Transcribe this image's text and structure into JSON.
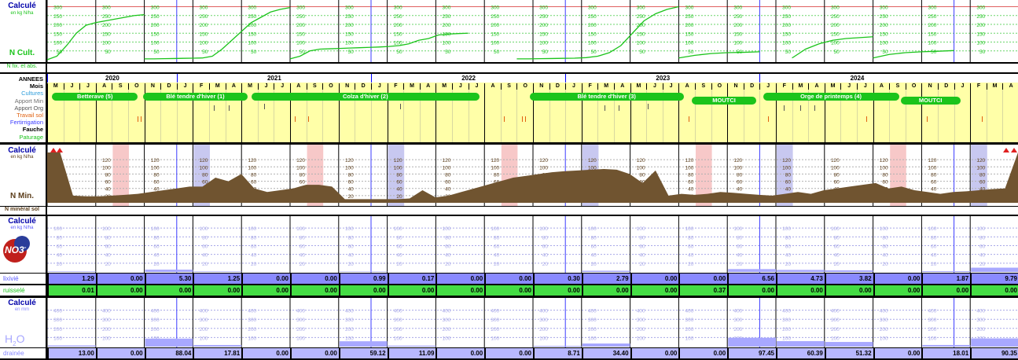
{
  "ncult": {
    "title": "Calculé",
    "unit": "en kg N/ha",
    "name": "N Cult.",
    "sub": "N fix. et abs.",
    "ticks": [
      "50",
      "100",
      "150",
      "200",
      "250",
      "300"
    ]
  },
  "itk": {
    "rows": [
      "ANNEES",
      "Mois",
      "Cultures",
      "Apport Min",
      "Apport Org",
      "Travail sol",
      "Fertirrigation",
      "Fauche",
      "Paturage"
    ],
    "years": [
      "2020",
      "2021",
      "2022",
      "2023",
      "2024"
    ],
    "months": [
      "M",
      "J",
      "J",
      "A",
      "S",
      "O",
      "N",
      "D",
      "J",
      "F",
      "M",
      "A",
      "M",
      "J",
      "J",
      "A",
      "S",
      "O",
      "N",
      "D",
      "J",
      "F",
      "M",
      "A",
      "M",
      "J",
      "J",
      "A",
      "S",
      "O",
      "N",
      "D",
      "J",
      "F",
      "M",
      "A",
      "M",
      "J",
      "J",
      "A",
      "S",
      "O",
      "N",
      "D",
      "J",
      "F",
      "M",
      "A",
      "M",
      "J",
      "J",
      "A",
      "S",
      "O",
      "N",
      "D",
      "J",
      "F",
      "M",
      "A"
    ],
    "crops": [
      "Betterave (5)",
      "Blé tendre d'hiver (1)",
      "Colza d'hiver (2)",
      "Blé tendre d'hiver (3)",
      "MOUTCI",
      "Orge de printemps (4)",
      "MOUTCI"
    ]
  },
  "nmin": {
    "title": "Calculé",
    "unit": "en kg N/ha",
    "name": "N Min.",
    "sub": "N minéral sol",
    "ticks": [
      "20",
      "40",
      "60",
      "80",
      "100",
      "120"
    ]
  },
  "no3": {
    "title": "Calculé",
    "unit": "en kg N/ha",
    "icon": "NO3",
    "sup": "-",
    "row1": "lixivié",
    "row2": "ruisselé",
    "lix": [
      "1.29",
      "0.00",
      "5.30",
      "1.25",
      "0.00",
      "0.00",
      "0.99",
      "0.17",
      "0.00",
      "0.00",
      "0.30",
      "2.79",
      "0.00",
      "0.00",
      "6.56",
      "4.73",
      "3.82",
      "0.00",
      "1.87",
      "9.79"
    ],
    "rui": [
      "0.01",
      "0.00",
      "0.00",
      "0.00",
      "0.00",
      "0.00",
      "0.00",
      "0.00",
      "0.00",
      "0.00",
      "0.00",
      "0.00",
      "0.00",
      "0.37",
      "0.00",
      "0.00",
      "0.00",
      "0.00",
      "0.00",
      "0.00"
    ]
  },
  "h2o": {
    "title": "Calculé",
    "unit": "en mm",
    "name": "H",
    "sub2": "2",
    "name2": "O",
    "ticks": [
      "100",
      "200",
      "300",
      "400"
    ],
    "row": "drainée",
    "vals": [
      "13.00",
      "0.00",
      "88.04",
      "17.81",
      "0.00",
      "0.00",
      "59.12",
      "11.09",
      "0.00",
      "0.00",
      "8.71",
      "34.40",
      "0.00",
      "0.00",
      "97.45",
      "60.39",
      "51.32",
      "0.00",
      "18.01",
      "90.35"
    ]
  },
  "chart_data": [
    {
      "type": "line",
      "title": "Calculé",
      "ylabel": "en kg N/ha",
      "ylim": [
        0,
        320
      ],
      "x": [
        "2020-05",
        "2021-02",
        "2022-02",
        "2023-03",
        "2023-10",
        "2024-03",
        "2024-09"
      ],
      "series": [
        {
          "values": [
            0,
            0,
            0,
            0,
            0,
            0,
            0
          ]
        }
      ],
      "segments": [
        {
          "from": "2020-05",
          "to": "2020-10",
          "points": [
            0,
            20,
            80,
            150,
            195,
            210,
            220,
            230,
            240,
            250,
            255
          ]
        },
        {
          "from": "2020-11",
          "to": "2021-07",
          "points": [
            5,
            5,
            6,
            7,
            8,
            9,
            10,
            20,
            60,
            110,
            160,
            210,
            240,
            270,
            285,
            295
          ]
        },
        {
          "from": "2021-08",
          "to": "2022-06",
          "points": [
            5,
            20,
            50,
            60,
            62,
            64,
            66,
            68,
            70,
            72,
            75,
            80,
            90,
            110,
            120,
            140,
            145,
            148,
            150
          ]
        },
        {
          "from": "2022-10",
          "to": "2023-07",
          "points": [
            5,
            5,
            6,
            7,
            8,
            9,
            12,
            20,
            40,
            80,
            150,
            220,
            260,
            285,
            300
          ]
        },
        {
          "from": "2023-08",
          "to": "2023-12",
          "points": [
            10,
            25,
            35,
            40,
            42,
            45
          ]
        },
        {
          "from": "2024-03",
          "to": "2024-07",
          "points": [
            10,
            60,
            90,
            110,
            120,
            125,
            130
          ]
        },
        {
          "from": "2024-08",
          "to": "2024-12",
          "points": [
            10,
            30,
            40,
            45,
            48,
            52
          ]
        }
      ]
    },
    {
      "type": "area",
      "title": "Calculé",
      "ylabel": "en kg N/ha",
      "ylim": [
        0,
        140
      ],
      "x_months_from": "2020-05",
      "values": [
        140,
        140,
        20,
        18,
        18,
        20,
        22,
        25,
        30,
        35,
        40,
        45,
        45,
        70,
        60,
        80,
        40,
        30,
        35,
        40,
        50,
        50,
        45,
        10,
        10,
        10,
        10,
        10,
        12,
        35,
        15,
        20,
        30,
        40,
        50,
        60,
        70,
        75,
        80,
        85,
        88,
        90,
        92,
        94,
        92,
        80,
        55,
        90,
        20,
        25,
        22,
        25,
        30,
        28,
        25,
        22,
        20,
        25,
        30,
        25,
        35,
        40,
        45,
        50,
        55,
        40,
        45,
        35,
        30,
        25,
        30,
        32,
        35,
        38,
        40,
        140
      ]
    },
    {
      "type": "bar",
      "title": "Calculé",
      "ylabel": "en kg N/ha",
      "series": [
        {
          "name": "lixivié",
          "values": [
            1.29,
            0.0,
            5.3,
            1.25,
            0.0,
            0.0,
            0.99,
            0.17,
            0.0,
            0.0,
            0.3,
            2.79,
            0.0,
            0.0,
            6.56,
            4.73,
            3.82,
            0.0,
            1.87,
            9.79
          ]
        },
        {
          "name": "ruisselé",
          "values": [
            0.01,
            0.0,
            0.0,
            0.0,
            0.0,
            0.0,
            0.0,
            0.0,
            0.0,
            0.0,
            0.0,
            0.0,
            0.0,
            0.37,
            0.0,
            0.0,
            0.0,
            0.0,
            0.0,
            0.0
          ]
        }
      ]
    },
    {
      "type": "bar",
      "title": "Calculé",
      "ylabel": "en mm",
      "ylim": [
        0,
        500
      ],
      "series": [
        {
          "name": "drainée",
          "values": [
            13.0,
            0.0,
            88.04,
            17.81,
            0.0,
            0.0,
            59.12,
            11.09,
            0.0,
            0.0,
            8.71,
            34.4,
            0.0,
            0.0,
            97.45,
            60.39,
            51.32,
            0.0,
            18.01,
            90.35
          ]
        }
      ]
    }
  ]
}
